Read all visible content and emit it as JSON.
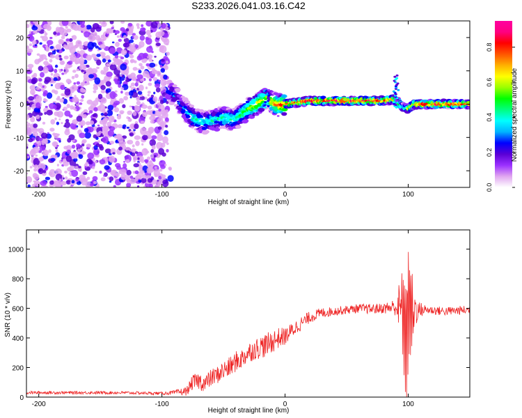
{
  "title": "S233.2026.041.03.16.C42",
  "chart_data": [
    {
      "type": "heatmap",
      "xlabel": "Height of straight line (km)",
      "ylabel": "Frequency (Hz)",
      "xlim": [
        -210,
        150
      ],
      "ylim": [
        -25,
        25
      ],
      "x_ticks": [
        -200,
        -100,
        0,
        100
      ],
      "y_ticks": [
        -20,
        -10,
        0,
        10,
        20
      ],
      "colorbar": {
        "label": "Normalized spectral amplitude",
        "range": [
          0.0,
          0.95
        ],
        "ticks": [
          0.0,
          0.2,
          0.4,
          0.6,
          0.8
        ],
        "tick_labels": [
          "0.0",
          "0.2",
          "0.4",
          "0.6",
          "0.8"
        ],
        "colors": [
          "#ffffff",
          "#e0a6f0",
          "#9b30ff",
          "#5a00d6",
          "#0000ff",
          "#00b4ff",
          "#00ffff",
          "#00ff7f",
          "#00ff00",
          "#9aff00",
          "#ffff00",
          "#ffb000",
          "#ff5500",
          "#ff0000",
          "#ff0080",
          "#ff00a0"
        ]
      },
      "ridge": {
        "x": [
          -95,
          -90,
          -85,
          -80,
          -75,
          -70,
          -65,
          -60,
          -55,
          -50,
          -45,
          -40,
          -35,
          -30,
          -25,
          -20,
          -15,
          -10,
          -5,
          0,
          10,
          20,
          40,
          60,
          80,
          88,
          92,
          96,
          100,
          105,
          115,
          130,
          150
        ],
        "freq": [
          4,
          3,
          0,
          -2,
          -4,
          -5,
          -5.5,
          -5,
          -4.5,
          -4,
          -4.5,
          -4.5,
          -3,
          -1.5,
          -0.5,
          0.5,
          2,
          0.5,
          -0.5,
          0,
          0.5,
          1,
          1,
          1,
          1,
          1.5,
          0.5,
          -1,
          -1.5,
          0,
          0,
          0,
          0
        ],
        "peak_amplitude": [
          0.25,
          0.3,
          0.3,
          0.35,
          0.45,
          0.45,
          0.4,
          0.45,
          0.4,
          0.45,
          0.5,
          0.45,
          0.55,
          0.6,
          0.65,
          0.7,
          0.6,
          0.7,
          0.8,
          0.85,
          0.88,
          0.92,
          0.95,
          0.95,
          0.9,
          0.75,
          0.6,
          0.5,
          0.6,
          0.85,
          0.9,
          0.9,
          0.9
        ]
      },
      "noise_region_x": [
        -210,
        -95
      ]
    },
    {
      "type": "line",
      "xlabel": "Height of straight line (km)",
      "ylabel": "SNR (10 * v/v)",
      "xlim": [
        -210,
        150
      ],
      "ylim": [
        0,
        1130
      ],
      "x_ticks": [
        -200,
        -100,
        0,
        100
      ],
      "y_ticks": [
        0,
        200,
        400,
        600,
        800,
        1000
      ],
      "series": [
        {
          "name": "SNR",
          "color": "#ee2222",
          "x": [
            -210,
            -200,
            -180,
            -160,
            -140,
            -120,
            -100,
            -90,
            -80,
            -75,
            -70,
            -65,
            -60,
            -55,
            -50,
            -45,
            -40,
            -35,
            -30,
            -25,
            -20,
            -15,
            -10,
            -5,
            0,
            10,
            20,
            30,
            40,
            50,
            60,
            70,
            80,
            90,
            95,
            98,
            100,
            102,
            104,
            108,
            115,
            130,
            150
          ],
          "y": [
            30,
            30,
            30,
            30,
            30,
            28,
            25,
            30,
            40,
            100,
            110,
            90,
            130,
            150,
            180,
            200,
            240,
            260,
            300,
            320,
            340,
            350,
            380,
            400,
            410,
            480,
            540,
            570,
            580,
            590,
            600,
            595,
            600,
            610,
            580,
            400,
            600,
            580,
            600,
            590,
            590,
            580,
            590
          ],
          "noise_amplitude": [
            10,
            10,
            10,
            10,
            10,
            10,
            10,
            15,
            30,
            50,
            60,
            60,
            60,
            60,
            70,
            70,
            70,
            70,
            70,
            70,
            80,
            80,
            80,
            70,
            60,
            50,
            40,
            35,
            30,
            30,
            30,
            35,
            35,
            60,
            300,
            450,
            500,
            450,
            200,
            60,
            30,
            30,
            30
          ]
        }
      ]
    }
  ]
}
